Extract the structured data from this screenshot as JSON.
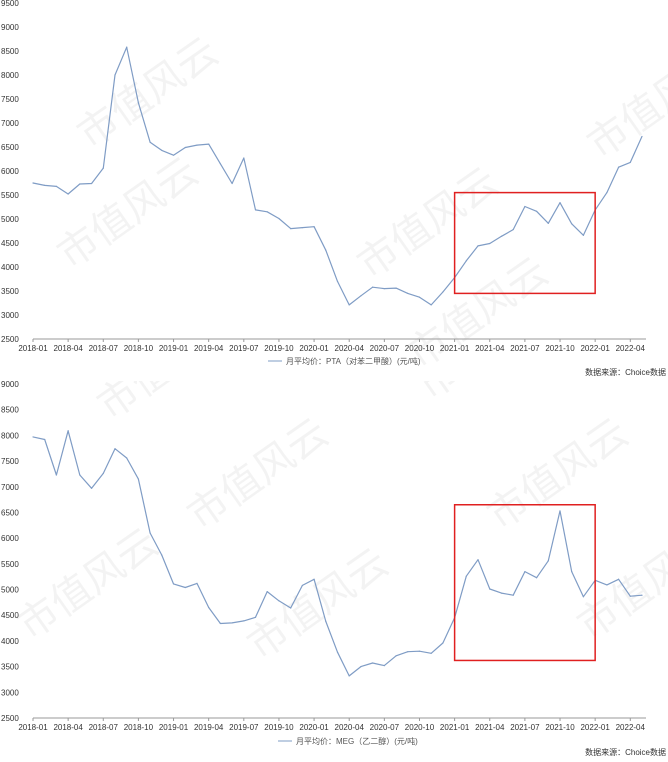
{
  "chart_data": [
    {
      "type": "line",
      "legend_label": "月平均价：PTA（对苯二甲酸）(元/吨)",
      "source": "数据来源：Choice数据",
      "color": "#7f9cc5",
      "highlight_color": "#e02020",
      "ylim": [
        2500,
        9500
      ],
      "yticks": [
        2500,
        3000,
        3500,
        4000,
        4500,
        5000,
        5500,
        6000,
        6500,
        7000,
        7500,
        8000,
        8500,
        9000,
        9500
      ],
      "xtick_labels": [
        "2018-01",
        "2018-04",
        "2018-07",
        "2018-10",
        "2019-01",
        "2019-04",
        "2019-07",
        "2019-10",
        "2020-01",
        "2020-04",
        "2020-07",
        "2020-10",
        "2021-01",
        "2021-04",
        "2021-07",
        "2021-10",
        "2022-01",
        "2022-04"
      ],
      "x": [
        "2018-01",
        "2018-02",
        "2018-03",
        "2018-04",
        "2018-05",
        "2018-06",
        "2018-07",
        "2018-08",
        "2018-09",
        "2018-10",
        "2018-11",
        "2018-12",
        "2019-01",
        "2019-02",
        "2019-03",
        "2019-04",
        "2019-05",
        "2019-06",
        "2019-07",
        "2019-08",
        "2019-09",
        "2019-10",
        "2019-11",
        "2019-12",
        "2020-01",
        "2020-02",
        "2020-03",
        "2020-04",
        "2020-05",
        "2020-06",
        "2020-07",
        "2020-08",
        "2020-09",
        "2020-10",
        "2020-11",
        "2020-12",
        "2021-01",
        "2021-02",
        "2021-03",
        "2021-04",
        "2021-05",
        "2021-06",
        "2021-07",
        "2021-08",
        "2021-09",
        "2021-10",
        "2021-11",
        "2021-12",
        "2022-01",
        "2022-02",
        "2022-03",
        "2022-04",
        "2022-05"
      ],
      "values": [
        5750,
        5700,
        5680,
        5520,
        5730,
        5740,
        6060,
        8000,
        8580,
        7420,
        6600,
        6430,
        6330,
        6490,
        6540,
        6560,
        6150,
        5740,
        6270,
        5190,
        5150,
        5010,
        4800,
        4820,
        4840,
        4350,
        3700,
        3210,
        3400,
        3580,
        3550,
        3560,
        3450,
        3370,
        3210,
        3480,
        3780,
        4130,
        4440,
        4490,
        4640,
        4780,
        5260,
        5160,
        4910,
        5340,
        4900,
        4660,
        5190,
        5550,
        6080,
        6180,
        6720
      ],
      "highlight": {
        "from": "2021-01",
        "to": "2022-01",
        "y_range": [
          3450,
          5550
        ]
      },
      "grid": false,
      "legend_position": "bottom-center"
    },
    {
      "type": "line",
      "legend_label": "月平均价：MEG（乙二醇）(元/吨)",
      "source": "数据来源：Choice数据",
      "color": "#7f9cc5",
      "highlight_color": "#e02020",
      "ylim": [
        2500,
        9000
      ],
      "yticks": [
        2500,
        3000,
        3500,
        4000,
        4500,
        5000,
        5500,
        6000,
        6500,
        7000,
        7500,
        8000,
        8500,
        9000
      ],
      "xtick_labels": [
        "2018-01",
        "2018-04",
        "2018-07",
        "2018-10",
        "2019-01",
        "2019-04",
        "2019-07",
        "2019-10",
        "2020-01",
        "2020-04",
        "2020-07",
        "2020-10",
        "2021-01",
        "2021-04",
        "2021-07",
        "2021-10",
        "2022-01",
        "2022-04"
      ],
      "x": [
        "2018-01",
        "2018-02",
        "2018-03",
        "2018-04",
        "2018-05",
        "2018-06",
        "2018-07",
        "2018-08",
        "2018-09",
        "2018-10",
        "2018-11",
        "2018-12",
        "2019-01",
        "2019-02",
        "2019-03",
        "2019-04",
        "2019-05",
        "2019-06",
        "2019-07",
        "2019-08",
        "2019-09",
        "2019-10",
        "2019-11",
        "2019-12",
        "2020-01",
        "2020-02",
        "2020-03",
        "2020-04",
        "2020-05",
        "2020-06",
        "2020-07",
        "2020-08",
        "2020-09",
        "2020-10",
        "2020-11",
        "2020-12",
        "2021-01",
        "2021-02",
        "2021-03",
        "2021-04",
        "2021-05",
        "2021-06",
        "2021-07",
        "2021-08",
        "2021-09",
        "2021-10",
        "2021-11",
        "2021-12",
        "2022-01",
        "2022-02",
        "2022-03",
        "2022-04",
        "2022-05"
      ],
      "values": [
        7970,
        7920,
        7230,
        8090,
        7230,
        6970,
        7260,
        7740,
        7560,
        7150,
        6100,
        5670,
        5110,
        5040,
        5120,
        4650,
        4340,
        4350,
        4390,
        4460,
        4960,
        4780,
        4640,
        5080,
        5200,
        4380,
        3780,
        3320,
        3500,
        3570,
        3520,
        3710,
        3790,
        3800,
        3760,
        3960,
        4450,
        5260,
        5580,
        5010,
        4930,
        4890,
        5350,
        5230,
        5560,
        6530,
        5350,
        4860,
        5180,
        5090,
        5200,
        4870,
        4890
      ],
      "highlight": {
        "from": "2021-01",
        "to": "2022-01",
        "y_range": [
          3620,
          6650
        ]
      },
      "grid": false,
      "legend_position": "bottom-center"
    }
  ]
}
